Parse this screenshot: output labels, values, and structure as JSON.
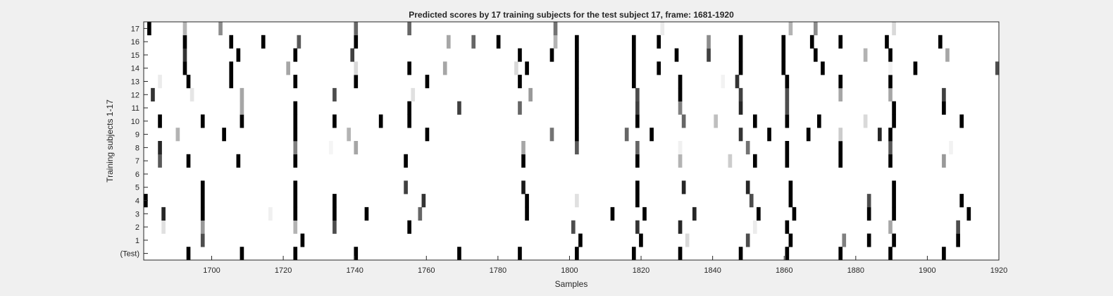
{
  "chart_data": {
    "type": "heatmap",
    "title": "Predicted scores by 17 training subjects for the test subject 17, frame: 1681-1920",
    "xlabel": "Samples",
    "ylabel": "Training subjects 1-17",
    "xlim": [
      1681,
      1920
    ],
    "x_ticks": [
      1700,
      1720,
      1740,
      1760,
      1780,
      1800,
      1820,
      1840,
      1860,
      1880,
      1900,
      1920
    ],
    "rows": [
      "(Test)",
      "1",
      "2",
      "3",
      "4",
      "5",
      "6",
      "7",
      "8",
      "9",
      "10",
      "11",
      "12",
      "13",
      "14",
      "15",
      "16",
      "17"
    ],
    "colormap": "gray (white = 0, black = 1)",
    "grid": false,
    "cells": [
      {
        "row": "(Test)",
        "marks": [
          [
            1693,
            1
          ],
          [
            1708,
            1
          ],
          [
            1723,
            1
          ],
          [
            1740,
            1
          ],
          [
            1769,
            1
          ],
          [
            1786,
            1
          ],
          [
            1802,
            1
          ],
          [
            1818,
            1
          ],
          [
            1831,
            1
          ],
          [
            1848,
            1
          ],
          [
            1861,
            1
          ],
          [
            1876,
            1
          ],
          [
            1890,
            1
          ],
          [
            1905,
            1
          ]
        ]
      },
      {
        "row": "1",
        "marks": [
          [
            1697,
            0.7
          ],
          [
            1725,
            1
          ],
          [
            1803,
            1
          ],
          [
            1820,
            1
          ],
          [
            1833,
            0.15
          ],
          [
            1850,
            0.7
          ],
          [
            1862,
            1
          ],
          [
            1877,
            0.5
          ],
          [
            1884,
            1
          ],
          [
            1891,
            1
          ],
          [
            1909,
            1
          ]
        ]
      },
      {
        "row": "2",
        "marks": [
          [
            1686,
            0.12
          ],
          [
            1697,
            0.4
          ],
          [
            1723,
            0.3
          ],
          [
            1734,
            0.7
          ],
          [
            1755,
            1
          ],
          [
            1801,
            0.7
          ],
          [
            1819,
            0.8
          ],
          [
            1831,
            0.85
          ],
          [
            1852,
            0.08
          ],
          [
            1861,
            1
          ],
          [
            1890,
            0.35
          ],
          [
            1909,
            0.7
          ]
        ]
      },
      {
        "row": "3",
        "marks": [
          [
            1686,
            0.85
          ],
          [
            1697,
            1
          ],
          [
            1716,
            0.06
          ],
          [
            1723,
            1
          ],
          [
            1734,
            1
          ],
          [
            1743,
            1
          ],
          [
            1758,
            0.6
          ],
          [
            1788,
            1
          ],
          [
            1812,
            1
          ],
          [
            1821,
            1
          ],
          [
            1835,
            0.85
          ],
          [
            1853,
            1
          ],
          [
            1863,
            1
          ],
          [
            1884,
            1
          ],
          [
            1891,
            1
          ],
          [
            1912,
            1
          ]
        ]
      },
      {
        "row": "4",
        "marks": [
          [
            1681,
            1
          ],
          [
            1697,
            1
          ],
          [
            1723,
            1
          ],
          [
            1734,
            1
          ],
          [
            1759,
            0.8
          ],
          [
            1788,
            1
          ],
          [
            1802,
            0.12
          ],
          [
            1819,
            1
          ],
          [
            1851,
            0.7
          ],
          [
            1862,
            1
          ],
          [
            1884,
            0.7
          ],
          [
            1891,
            1
          ],
          [
            1910,
            1
          ]
        ]
      },
      {
        "row": "5",
        "marks": [
          [
            1697,
            1
          ],
          [
            1723,
            1
          ],
          [
            1754,
            0.75
          ],
          [
            1787,
            0.9
          ],
          [
            1819,
            1
          ],
          [
            1832,
            0.85
          ],
          [
            1850,
            0.85
          ],
          [
            1862,
            1
          ],
          [
            1891,
            1
          ]
        ]
      },
      {
        "row": "6",
        "marks": []
      },
      {
        "row": "7",
        "marks": [
          [
            1685,
            0.65
          ],
          [
            1693,
            1
          ],
          [
            1707,
            1
          ],
          [
            1723,
            1
          ],
          [
            1754,
            1
          ],
          [
            1787,
            1
          ],
          [
            1819,
            1
          ],
          [
            1831,
            0.3
          ],
          [
            1845,
            0.2
          ],
          [
            1852,
            1
          ],
          [
            1861,
            1
          ],
          [
            1876,
            1
          ],
          [
            1890,
            1
          ],
          [
            1905,
            0.4
          ]
        ]
      },
      {
        "row": "8",
        "marks": [
          [
            1685,
            0.85
          ],
          [
            1723,
            0.5
          ],
          [
            1733,
            0.04
          ],
          [
            1740,
            0.35
          ],
          [
            1787,
            0.35
          ],
          [
            1802,
            0.65
          ],
          [
            1819,
            0.6
          ],
          [
            1831,
            0.06
          ],
          [
            1850,
            0.55
          ],
          [
            1861,
            1
          ],
          [
            1876,
            1
          ],
          [
            1890,
            0.65
          ],
          [
            1907,
            0.05
          ]
        ]
      },
      {
        "row": "9",
        "marks": [
          [
            1690,
            0.3
          ],
          [
            1703,
            1
          ],
          [
            1723,
            1
          ],
          [
            1738,
            0.3
          ],
          [
            1760,
            1
          ],
          [
            1795,
            0.55
          ],
          [
            1802,
            1
          ],
          [
            1816,
            0.6
          ],
          [
            1823,
            1
          ],
          [
            1848,
            0.8
          ],
          [
            1856,
            1
          ],
          [
            1867,
            1
          ],
          [
            1876,
            0.2
          ],
          [
            1887,
            0.85
          ],
          [
            1890,
            1
          ]
        ]
      },
      {
        "row": "10",
        "marks": [
          [
            1685,
            1
          ],
          [
            1697,
            1
          ],
          [
            1708,
            1
          ],
          [
            1723,
            1
          ],
          [
            1734,
            1
          ],
          [
            1747,
            1
          ],
          [
            1755,
            1
          ],
          [
            1802,
            1
          ],
          [
            1819,
            1
          ],
          [
            1832,
            0.6
          ],
          [
            1841,
            0.25
          ],
          [
            1852,
            1
          ],
          [
            1861,
            1
          ],
          [
            1870,
            1
          ],
          [
            1883,
            0.15
          ],
          [
            1891,
            1
          ],
          [
            1910,
            1
          ]
        ]
      },
      {
        "row": "11",
        "marks": [
          [
            1708,
            0.35
          ],
          [
            1723,
            1
          ],
          [
            1755,
            1
          ],
          [
            1769,
            0.75
          ],
          [
            1786,
            0.6
          ],
          [
            1802,
            1
          ],
          [
            1819,
            0.75
          ],
          [
            1831,
            0.5
          ],
          [
            1848,
            0.85
          ],
          [
            1861,
            0.7
          ],
          [
            1891,
            1
          ],
          [
            1905,
            1
          ]
        ]
      },
      {
        "row": "12",
        "marks": [
          [
            1683,
            0.8
          ],
          [
            1694,
            0.1
          ],
          [
            1708,
            0.35
          ],
          [
            1734,
            0.7
          ],
          [
            1756,
            0.12
          ],
          [
            1789,
            0.4
          ],
          [
            1802,
            1
          ],
          [
            1819,
            0.7
          ],
          [
            1831,
            1
          ],
          [
            1848,
            0.75
          ],
          [
            1861,
            0.7
          ],
          [
            1876,
            0.35
          ],
          [
            1890,
            0.35
          ],
          [
            1905,
            0.75
          ]
        ]
      },
      {
        "row": "13",
        "marks": [
          [
            1685,
            0.08
          ],
          [
            1693,
            1
          ],
          [
            1705,
            1
          ],
          [
            1723,
            1
          ],
          [
            1740,
            1
          ],
          [
            1760,
            1
          ],
          [
            1786,
            1
          ],
          [
            1802,
            1
          ],
          [
            1818,
            1
          ],
          [
            1831,
            1
          ],
          [
            1843,
            0.05
          ],
          [
            1847,
            0.8
          ],
          [
            1861,
            1
          ],
          [
            1876,
            1
          ],
          [
            1890,
            1
          ]
        ]
      },
      {
        "row": "14",
        "marks": [
          [
            1692,
            1
          ],
          [
            1705,
            1
          ],
          [
            1721,
            0.35
          ],
          [
            1740,
            0.15
          ],
          [
            1755,
            1
          ],
          [
            1765,
            0.35
          ],
          [
            1785,
            0.15
          ],
          [
            1788,
            1
          ],
          [
            1802,
            1
          ],
          [
            1818,
            1
          ],
          [
            1825,
            1
          ],
          [
            1848,
            1
          ],
          [
            1860,
            1
          ],
          [
            1871,
            1
          ],
          [
            1890,
            0.05
          ],
          [
            1897,
            1
          ],
          [
            1920,
            0.7
          ]
        ]
      },
      {
        "row": "15",
        "marks": [
          [
            1692,
            0.8
          ],
          [
            1707,
            1
          ],
          [
            1723,
            1
          ],
          [
            1739,
            0.75
          ],
          [
            1786,
            1
          ],
          [
            1795,
            1
          ],
          [
            1802,
            1
          ],
          [
            1818,
            1
          ],
          [
            1830,
            1
          ],
          [
            1839,
            0.75
          ],
          [
            1848,
            1
          ],
          [
            1860,
            1
          ],
          [
            1869,
            1
          ],
          [
            1883,
            0.3
          ],
          [
            1890,
            1
          ],
          [
            1906,
            0.35
          ]
        ]
      },
      {
        "row": "16",
        "marks": [
          [
            1692,
            1
          ],
          [
            1705,
            1
          ],
          [
            1714,
            1
          ],
          [
            1724,
            0.65
          ],
          [
            1740,
            1
          ],
          [
            1766,
            0.35
          ],
          [
            1773,
            0.6
          ],
          [
            1780,
            1
          ],
          [
            1796,
            0.3
          ],
          [
            1802,
            1
          ],
          [
            1818,
            1
          ],
          [
            1825,
            1
          ],
          [
            1839,
            0.45
          ],
          [
            1848,
            1
          ],
          [
            1860,
            1
          ],
          [
            1868,
            1
          ],
          [
            1876,
            1
          ],
          [
            1889,
            1
          ],
          [
            1904,
            1
          ]
        ]
      },
      {
        "row": "17",
        "marks": [
          [
            1682,
            1
          ],
          [
            1692,
            0.3
          ],
          [
            1702,
            0.45
          ],
          [
            1740,
            0.6
          ],
          [
            1755,
            0.6
          ],
          [
            1796,
            0.55
          ],
          [
            1826,
            0.08
          ],
          [
            1862,
            0.3
          ],
          [
            1869,
            0.45
          ],
          [
            1891,
            0.15
          ]
        ]
      }
    ]
  }
}
